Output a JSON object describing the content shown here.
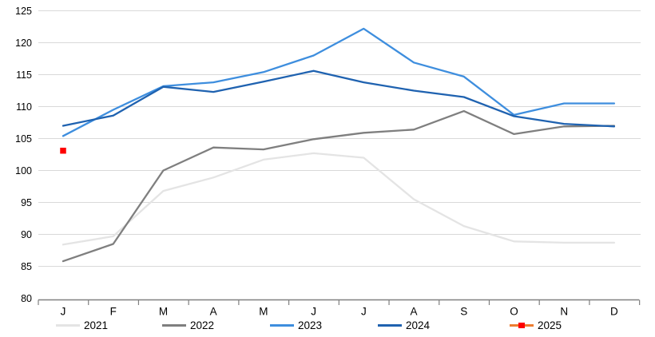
{
  "chart_data": {
    "type": "line",
    "title": "",
    "xlabel": "",
    "ylabel": "",
    "x_labels": [
      "J",
      "F",
      "M",
      "A",
      "M",
      "J",
      "J",
      "A",
      "S",
      "O",
      "N",
      "D"
    ],
    "y_ticks": [
      80,
      85,
      90,
      95,
      100,
      105,
      110,
      115,
      120,
      125
    ],
    "ylim": [
      80,
      125
    ],
    "grid": true,
    "legend_position": "bottom",
    "series": [
      {
        "name": "2021",
        "color": "#e4e4e4",
        "values": [
          88.4,
          89.7,
          96.8,
          98.9,
          101.7,
          102.7,
          102.0,
          95.5,
          91.3,
          88.9,
          88.7,
          88.7
        ]
      },
      {
        "name": "2022",
        "color": "#7f7f7f",
        "values": [
          85.8,
          88.5,
          100.0,
          103.6,
          103.3,
          104.9,
          105.9,
          106.4,
          109.3,
          105.7,
          106.9,
          107.0
        ]
      },
      {
        "name": "2023",
        "color": "#3e8ede",
        "values": [
          105.4,
          109.5,
          113.2,
          113.8,
          115.4,
          118.0,
          122.2,
          116.9,
          114.7,
          108.7,
          110.5,
          110.5
        ]
      },
      {
        "name": "2024",
        "color": "#1f62b0",
        "values": [
          107.0,
          108.6,
          113.1,
          112.3,
          113.9,
          115.6,
          113.8,
          112.5,
          111.5,
          108.5,
          107.3,
          106.9
        ]
      },
      {
        "name": "2025",
        "color": "#ed7d31",
        "marker": "square",
        "marker_color": "#fe0000",
        "values": [
          103.1,
          null,
          null,
          null,
          null,
          null,
          null,
          null,
          null,
          null,
          null,
          null
        ]
      }
    ],
    "colors": {
      "gridline": "#d9d9d9",
      "axis": "#808080",
      "tick_text": "#000000"
    }
  }
}
